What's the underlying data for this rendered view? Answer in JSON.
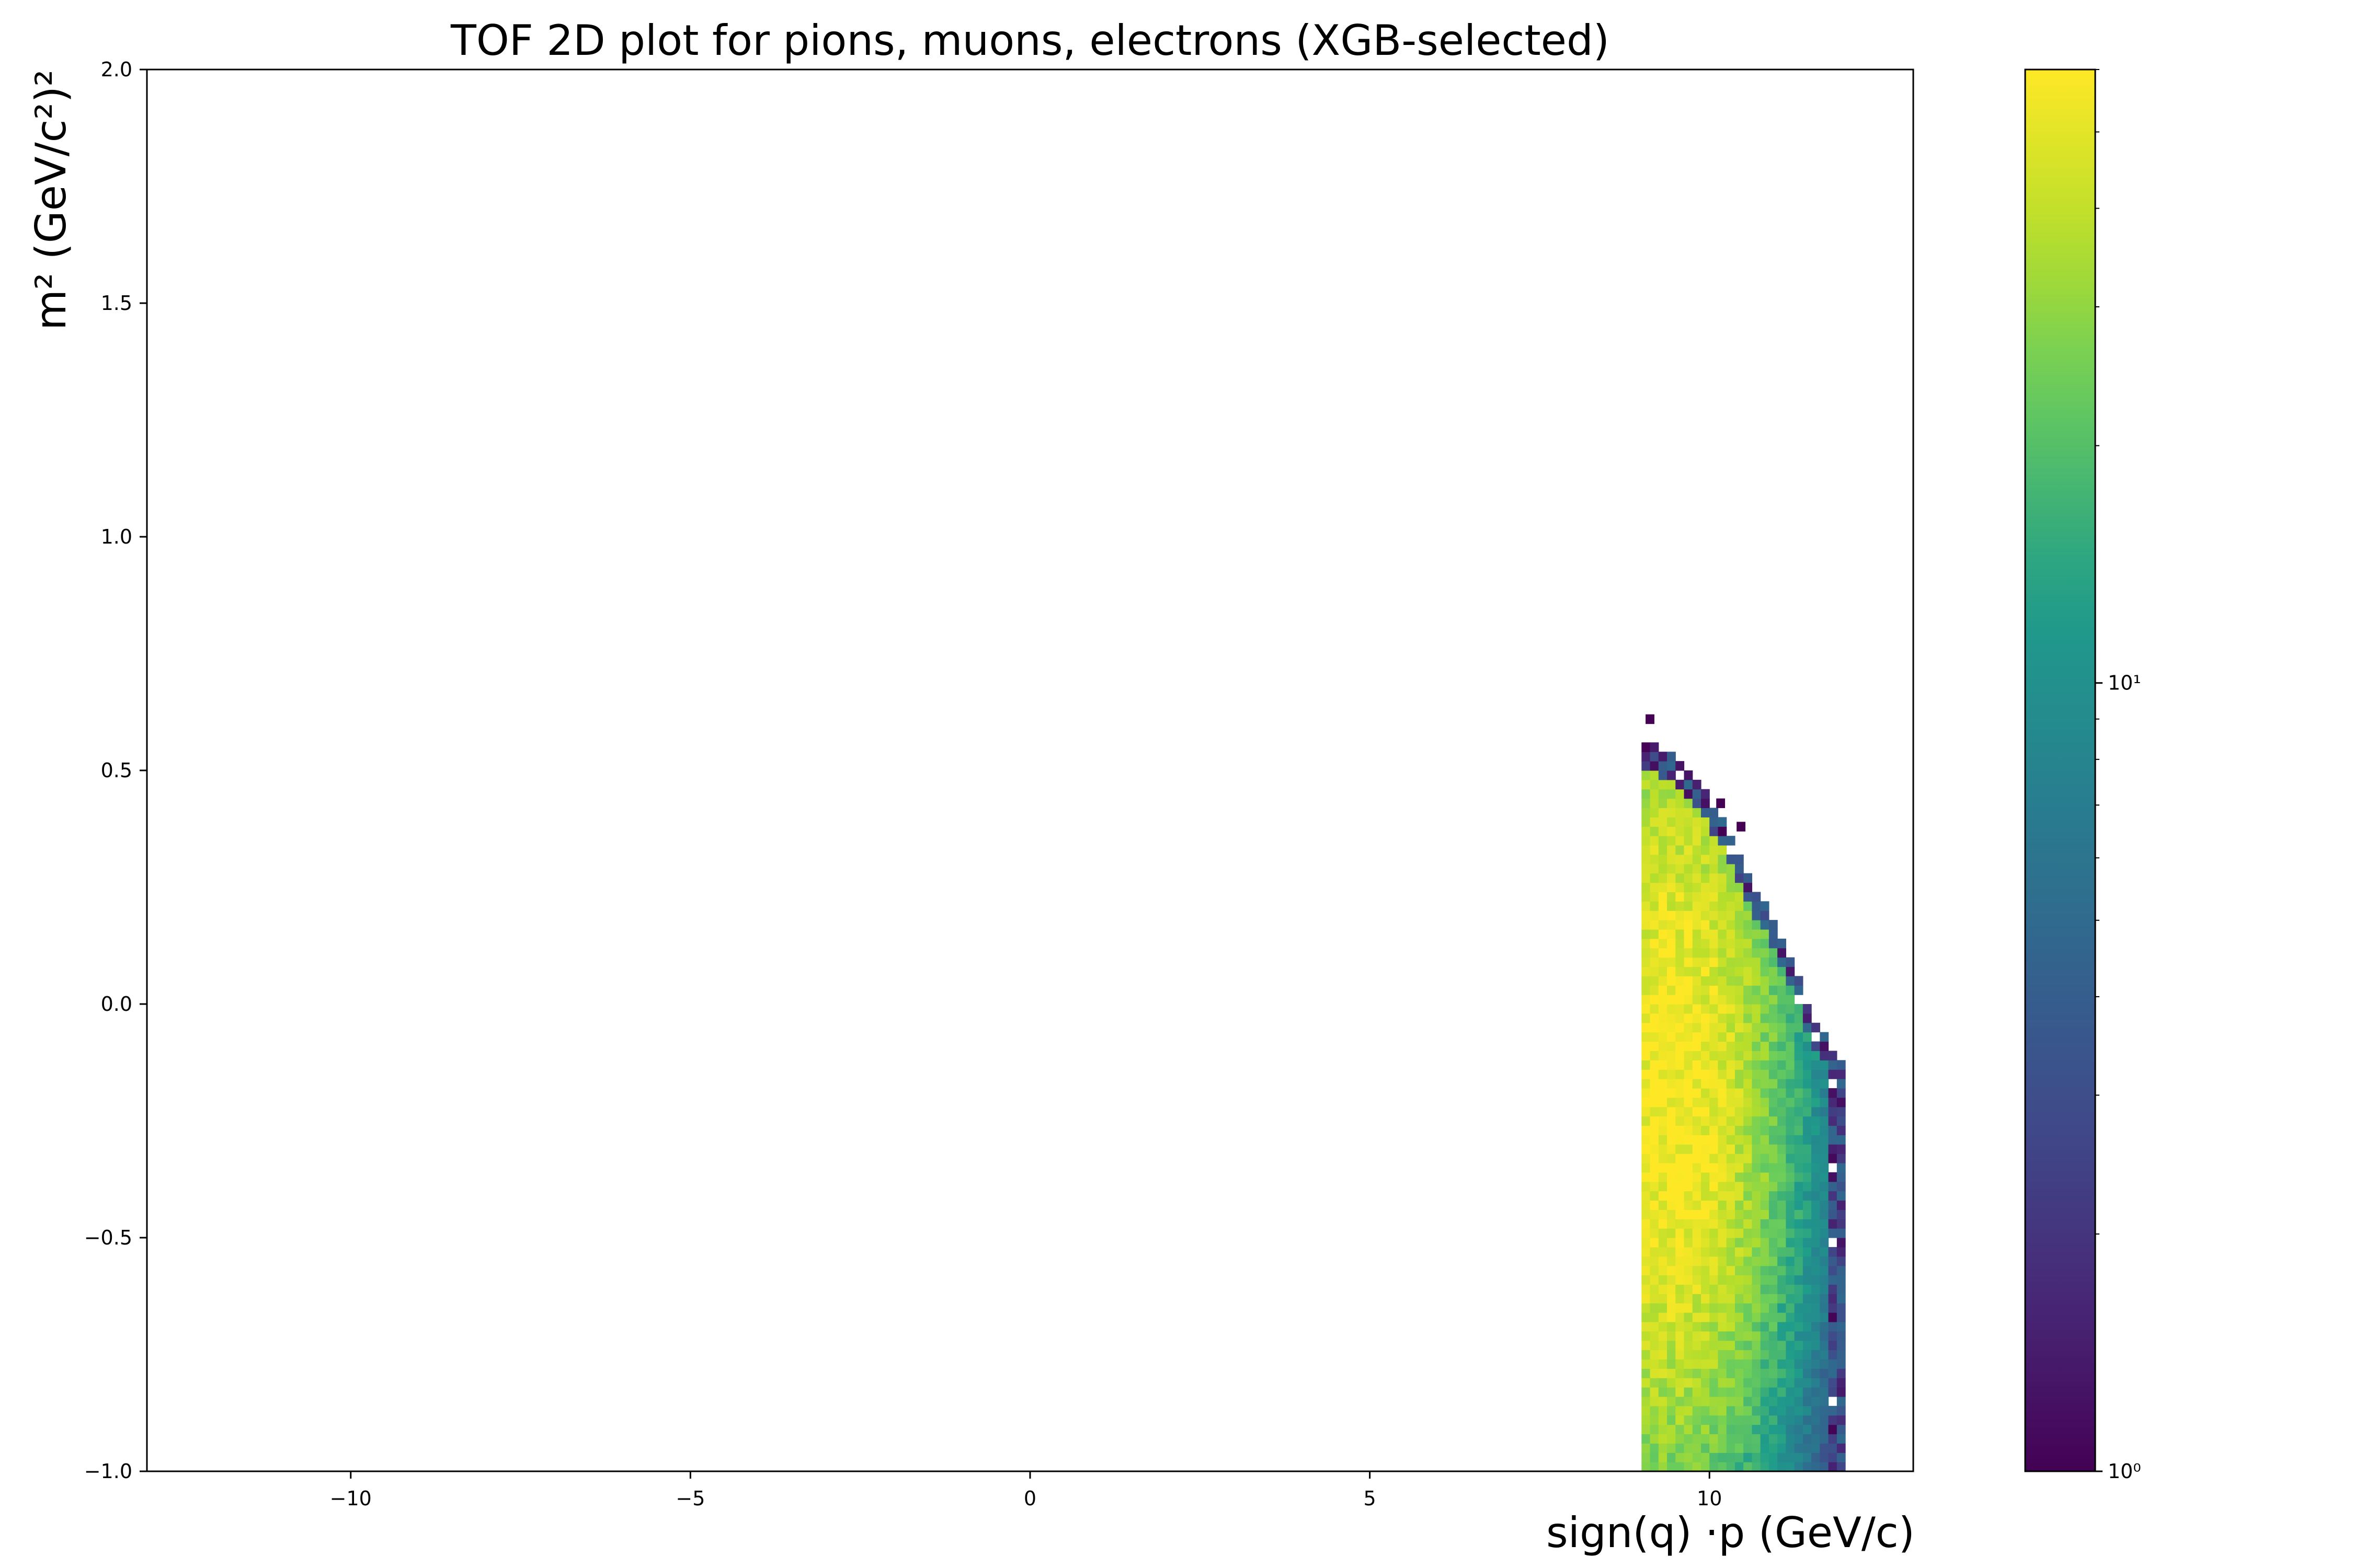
{
  "chart_data": {
    "type": "heatmap",
    "title": "TOF 2D plot for pions, muons, electrons (XGB-selected)",
    "xlabel": "sign(q) ·p (GeV/c)",
    "ylabel": "m² (GeV/c²)²",
    "xlim": [
      -13,
      13
    ],
    "ylim": [
      -1.0,
      2.0
    ],
    "xticks": [
      -10,
      -5,
      0,
      5,
      10
    ],
    "xtick_labels": [
      "−10",
      "−5",
      "0",
      "5",
      "10"
    ],
    "yticks": [
      -1.0,
      -0.5,
      0.0,
      0.5,
      1.0,
      1.5,
      2.0
    ],
    "ytick_labels": [
      "−1.0",
      "−0.5",
      "0.0",
      "0.5",
      "1.0",
      "1.5",
      "2.0"
    ],
    "colorbar": {
      "scale": "log",
      "range": [
        1,
        60
      ],
      "ticks": [
        1,
        10
      ],
      "tick_labels": [
        "10⁰",
        "10¹"
      ],
      "colormap": "viridis"
    },
    "bin_size": {
      "x": 0.125,
      "y": 0.02
    },
    "region_edge": [
      {
        "x": 9.0,
        "y_max": 0.56
      },
      {
        "x": 9.5,
        "y_max": 0.51
      },
      {
        "x": 10.0,
        "y_max": 0.42
      },
      {
        "x": 10.5,
        "y_max": 0.27
      },
      {
        "x": 11.0,
        "y_max": 0.14
      },
      {
        "x": 11.5,
        "y_max": -0.05
      },
      {
        "x": 12.0,
        "y_max": -0.15
      }
    ],
    "outlier_bins": [
      {
        "x": 9.06,
        "y": 0.6,
        "count": 1
      },
      {
        "x": 10.1,
        "y": 0.42,
        "count": 1
      },
      {
        "x": 10.4,
        "y": 0.37,
        "count": 1
      }
    ],
    "peak": {
      "x": 9.4,
      "y": -0.2,
      "count": 60
    }
  },
  "colors": {
    "viridis": [
      "#440154",
      "#482777",
      "#3f4a8a",
      "#31678e",
      "#26838f",
      "#1f9d8a",
      "#6cce5a",
      "#b6de2b",
      "#fee825"
    ]
  }
}
